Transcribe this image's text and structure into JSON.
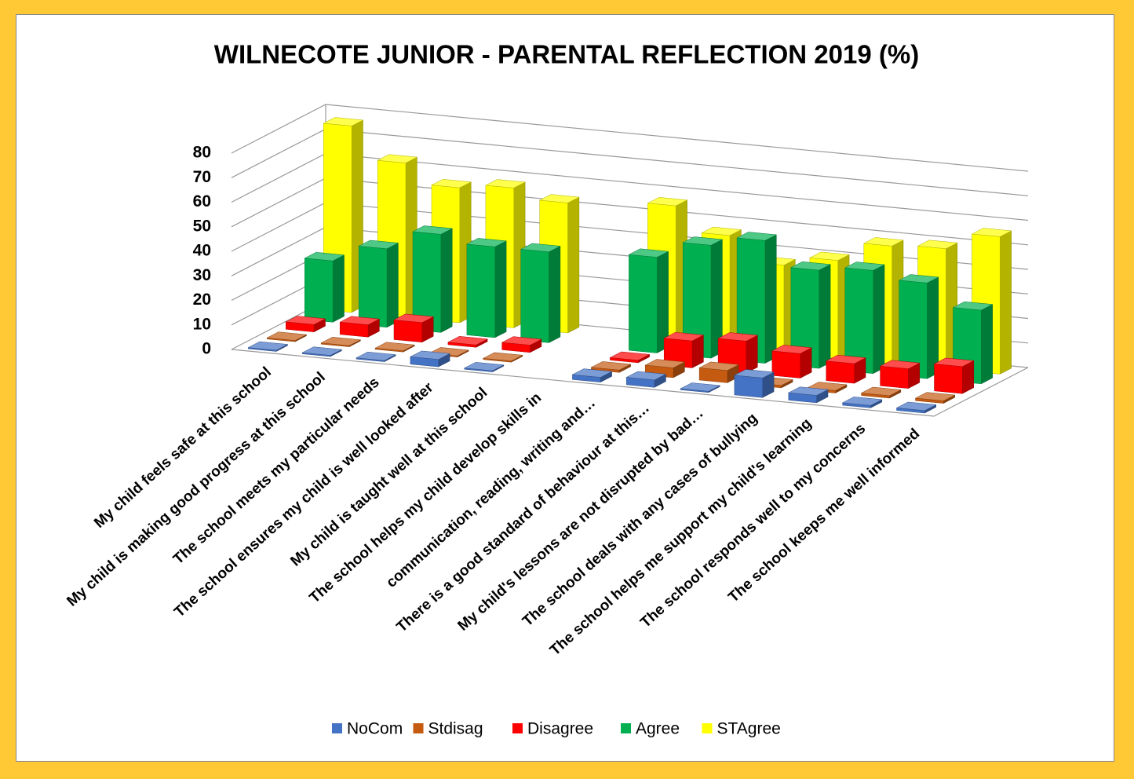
{
  "chart_data": {
    "type": "bar3d",
    "title": "WILNECOTE JUNIOR - PARENTAL REFLECTION 2019 (%)",
    "categories": [
      "My child feels safe at this school",
      "My child is making good progress at this school",
      "The school meets my particular needs",
      "The school ensures my child is well looked after",
      "My child is taught well at this school",
      "The school helps my child develop skills in",
      "communication, reading, writing and…",
      "There is a good standard of behaviour at this…",
      "My child's lessons are not disrupted by bad…",
      "The school deals with any cases of bullying",
      "The school helps me support my child's learning",
      "The school responds well to my concerns",
      "The school keeps me well informed"
    ],
    "series": [
      {
        "name": "NoCom",
        "color": "#4472c4",
        "values": [
          0,
          0,
          0,
          3,
          0,
          null,
          2,
          3,
          0,
          8,
          3,
          1,
          1
        ]
      },
      {
        "name": "Stdisag",
        "color": "#c55a11",
        "values": [
          0,
          0,
          0,
          0,
          0,
          null,
          1,
          4,
          5,
          1,
          1,
          1,
          1
        ]
      },
      {
        "name": "Disagree",
        "color": "#ff0000",
        "values": [
          3,
          5,
          8,
          1,
          3,
          null,
          1,
          11,
          13,
          10,
          8,
          8,
          11
        ]
      },
      {
        "name": "Agree",
        "color": "#00b050",
        "values": [
          25,
          32,
          40,
          37,
          37,
          null,
          39,
          46,
          50,
          40,
          42,
          39,
          30
        ]
      },
      {
        "name": "STAgree",
        "color": "#ffff00",
        "values": [
          76,
          63,
          55,
          57,
          53,
          null,
          56,
          46,
          36,
          40,
          48,
          49,
          56
        ]
      }
    ],
    "ylim": [
      0,
      80
    ],
    "yticks": [
      0,
      10,
      20,
      30,
      40,
      50,
      60,
      70,
      80
    ],
    "grid": true,
    "legend": "bottom"
  }
}
